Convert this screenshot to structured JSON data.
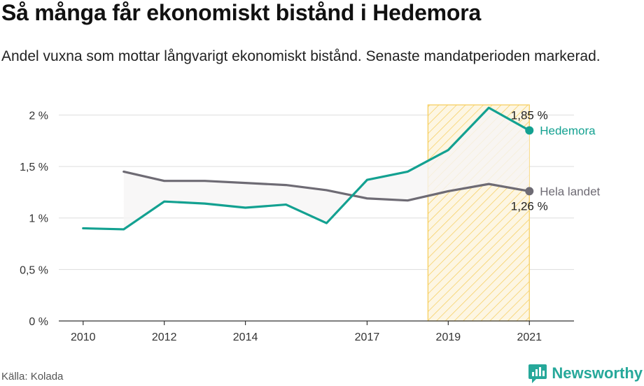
{
  "title": "Så många får ekonomiskt bistånd i Hedemora",
  "subtitle": "Andel vuxna som mottar långvarigt ekonomiskt bistånd. Senaste mandatperioden markerad.",
  "source": "Källa: Kolada",
  "brand": "Newsworthy",
  "colors": {
    "hedemora": "#13a191",
    "riket": "#6e6b74",
    "highlight_fill": "#fdf6e3",
    "highlight_stroke": "#f6cc58",
    "grid": "#dddddd",
    "gap_fill": "#f6f5f5"
  },
  "chart_data": {
    "type": "line",
    "x_ticks": [
      2010,
      2012,
      2014,
      2017,
      2019,
      2021
    ],
    "y_ticks": [
      {
        "value": 0,
        "label": "0 %"
      },
      {
        "value": 0.5,
        "label": "0,5 %"
      },
      {
        "value": 1,
        "label": "1 %"
      },
      {
        "value": 1.5,
        "label": "1,5 %"
      },
      {
        "value": 2,
        "label": "2 %"
      }
    ],
    "xlim": [
      2009.4,
      2022.1
    ],
    "ylim": [
      0,
      2.2
    ],
    "highlight_period": [
      2018.5,
      2021
    ],
    "series": [
      {
        "name": "Hedemora",
        "key": "hedemora",
        "end_value_label": "1,85 %",
        "points": [
          {
            "x": 2010,
            "y": 0.9
          },
          {
            "x": 2011,
            "y": 0.89
          },
          {
            "x": 2012,
            "y": 1.16
          },
          {
            "x": 2013,
            "y": 1.14
          },
          {
            "x": 2014,
            "y": 1.1
          },
          {
            "x": 2015,
            "y": 1.13
          },
          {
            "x": 2016,
            "y": 0.95
          },
          {
            "x": 2017,
            "y": 1.37
          },
          {
            "x": 2018,
            "y": 1.45
          },
          {
            "x": 2019,
            "y": 1.66
          },
          {
            "x": 2020,
            "y": 2.07
          },
          {
            "x": 2021,
            "y": 1.85
          }
        ]
      },
      {
        "name": "Hela landet",
        "key": "riket",
        "end_value_label": "1,26 %",
        "points": [
          {
            "x": 2011,
            "y": 1.45
          },
          {
            "x": 2012,
            "y": 1.36
          },
          {
            "x": 2013,
            "y": 1.36
          },
          {
            "x": 2014,
            "y": 1.34
          },
          {
            "x": 2015,
            "y": 1.32
          },
          {
            "x": 2016,
            "y": 1.27
          },
          {
            "x": 2017,
            "y": 1.19
          },
          {
            "x": 2018,
            "y": 1.17
          },
          {
            "x": 2019,
            "y": 1.26
          },
          {
            "x": 2020,
            "y": 1.33
          },
          {
            "x": 2021,
            "y": 1.26
          }
        ]
      }
    ]
  }
}
